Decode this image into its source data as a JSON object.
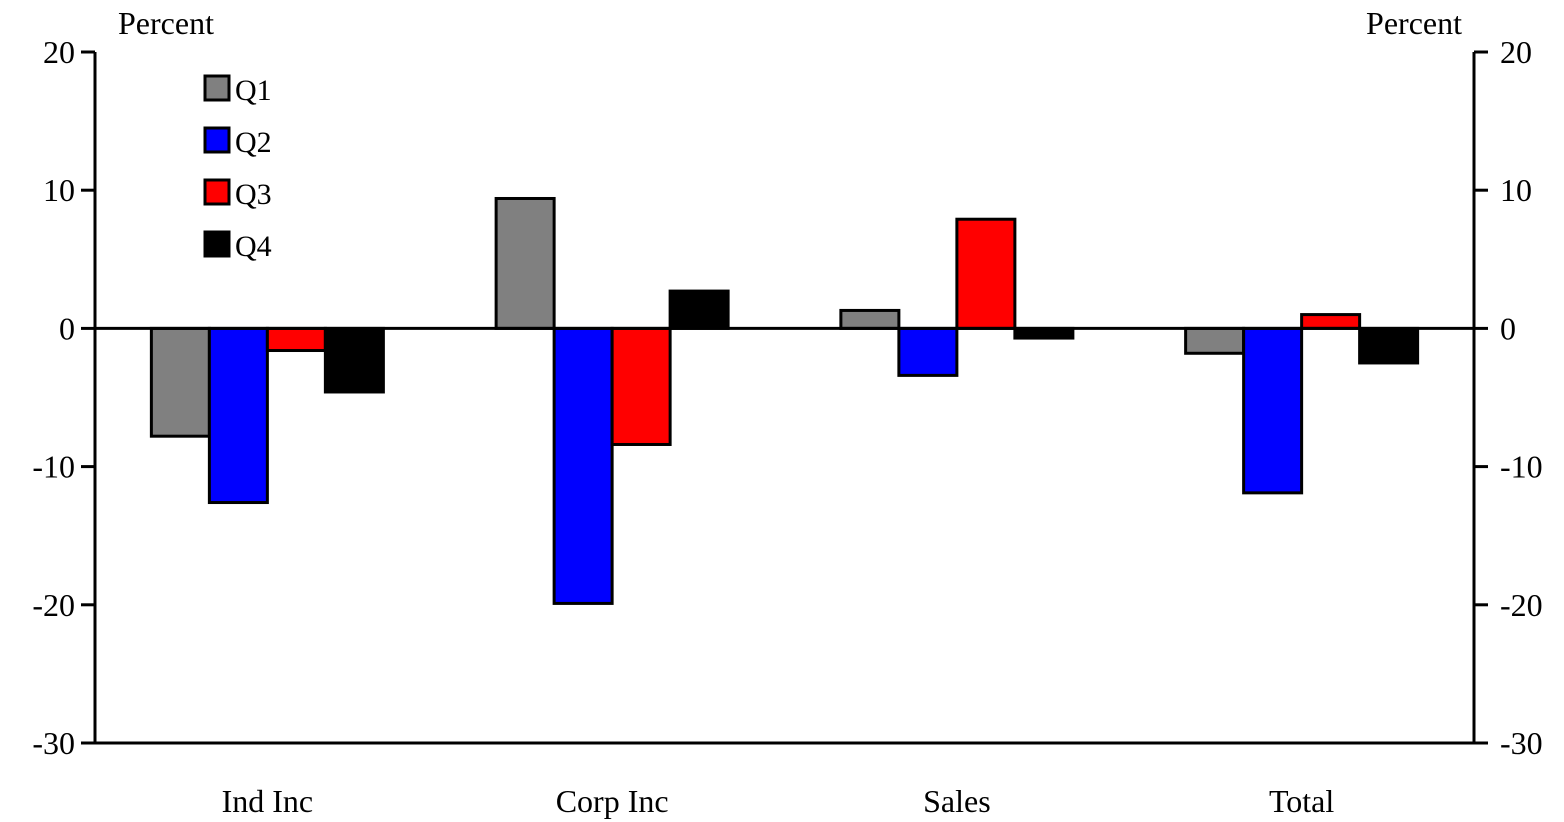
{
  "chart_data": {
    "type": "bar",
    "left_axis_label": "Percent",
    "right_axis_label": "Percent",
    "categories": [
      "Ind Inc",
      "Corp Inc",
      "Sales",
      "Total"
    ],
    "series": [
      {
        "name": "Q1",
        "color": "#808080",
        "values": [
          -7.8,
          9.4,
          1.3,
          -1.8
        ]
      },
      {
        "name": "Q2",
        "color": "#0000ff",
        "values": [
          -12.6,
          -19.9,
          -3.4,
          -11.9
        ]
      },
      {
        "name": "Q3",
        "color": "#ff0000",
        "values": [
          -1.6,
          -8.4,
          7.9,
          1.0
        ]
      },
      {
        "name": "Q4",
        "color": "#000000",
        "values": [
          -4.6,
          2.7,
          -0.7,
          -2.5
        ]
      }
    ],
    "yticks": [
      "20",
      "10",
      "0",
      "-10",
      "-20",
      "-30"
    ],
    "ylim": [
      -30,
      20
    ],
    "legend_position": "top-left",
    "grid": false
  }
}
